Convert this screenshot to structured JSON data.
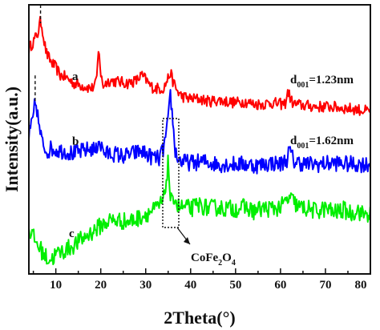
{
  "chart_data": {
    "type": "line",
    "xlabel": "2Theta(°)",
    "ylabel": "Intensity(a.u.)",
    "xlim": [
      4,
      80
    ],
    "x_ticks": [
      10,
      20,
      30,
      40,
      50,
      60,
      70,
      80
    ],
    "y_tick_labels": false,
    "series": [
      {
        "name": "a",
        "color": "#ff0000",
        "x": [
          4,
          5,
          6,
          6.6,
          7,
          7.5,
          8,
          9,
          10,
          11,
          12,
          14,
          16,
          18,
          19,
          19.6,
          20,
          20.5,
          21,
          22,
          24,
          26,
          28,
          29,
          30,
          31,
          32,
          34,
          35,
          35.5,
          36,
          37,
          38,
          40,
          42,
          44,
          46,
          48,
          50,
          52,
          54,
          56,
          58,
          60,
          61,
          61.7,
          62.3,
          63,
          65,
          68,
          71,
          74,
          77,
          80
        ],
        "y": [
          8.6,
          8.9,
          9.2,
          9.7,
          9.4,
          8.8,
          8.4,
          8.1,
          7.9,
          7.6,
          7.55,
          7.3,
          7.2,
          7.1,
          7.3,
          8.7,
          7.6,
          7.2,
          7.3,
          7.4,
          7.35,
          7.3,
          7.4,
          7.6,
          7.45,
          7.2,
          7.1,
          7.1,
          7.5,
          7.7,
          7.4,
          7.0,
          6.8,
          6.7,
          6.7,
          6.6,
          6.65,
          6.6,
          6.55,
          6.6,
          6.5,
          6.5,
          6.55,
          6.5,
          6.5,
          7.0,
          6.65,
          6.5,
          6.45,
          6.4,
          6.4,
          6.35,
          6.3,
          6.2
        ]
      },
      {
        "name": "b",
        "color": "#0000ff",
        "x": [
          4,
          4.5,
          5,
          5.4,
          5.8,
          6.3,
          7,
          8,
          9,
          10,
          12,
          14,
          16,
          18,
          19,
          19.5,
          20,
          21,
          23,
          25,
          27,
          29,
          31,
          33,
          34,
          35,
          35.5,
          36,
          36.5,
          37,
          38,
          40,
          43,
          46,
          49,
          52,
          55,
          58,
          60,
          61.5,
          62,
          63,
          66,
          69,
          72,
          75,
          78,
          80
        ],
        "y": [
          5.3,
          5.6,
          6.0,
          6.6,
          6.3,
          5.6,
          5.0,
          4.7,
          4.8,
          4.75,
          4.7,
          4.6,
          4.7,
          4.8,
          4.7,
          5.2,
          4.9,
          4.6,
          4.6,
          4.5,
          4.6,
          4.7,
          4.5,
          4.4,
          4.8,
          5.8,
          6.9,
          5.9,
          4.8,
          4.45,
          4.3,
          4.25,
          4.3,
          4.2,
          4.2,
          4.2,
          4.15,
          4.25,
          4.2,
          4.4,
          4.75,
          4.3,
          4.2,
          4.2,
          4.25,
          4.2,
          4.2,
          4.2
        ]
      },
      {
        "name": "c",
        "color": "#00ee00",
        "x": [
          4,
          5,
          6,
          7,
          8,
          9,
          10,
          12,
          14,
          16,
          18,
          20,
          22,
          24,
          26,
          28,
          30,
          32,
          33,
          34,
          34.6,
          35,
          35.5,
          36,
          36.5,
          37,
          38,
          40,
          42,
          44,
          46,
          48,
          50,
          52,
          54,
          56,
          58,
          60,
          62,
          63,
          64,
          66,
          68,
          70,
          72,
          74,
          76,
          77,
          78,
          80
        ],
        "y": [
          1.75,
          1.4,
          1.1,
          0.85,
          0.6,
          0.55,
          0.75,
          0.9,
          1.1,
          1.35,
          1.6,
          1.85,
          2.05,
          2.05,
          2.0,
          2.1,
          2.3,
          2.45,
          2.6,
          2.8,
          3.6,
          4.3,
          2.9,
          2.6,
          3.1,
          2.6,
          2.55,
          2.5,
          2.65,
          2.5,
          2.55,
          2.5,
          2.5,
          2.55,
          2.4,
          2.5,
          2.5,
          2.55,
          2.9,
          2.75,
          2.55,
          2.5,
          2.4,
          2.5,
          2.35,
          2.45,
          2.3,
          2.5,
          2.3,
          2.3
        ]
      }
    ],
    "annotations": {
      "labels": [
        "a",
        "b",
        "c"
      ],
      "d_a_main": "d",
      "d_a_sub": "001",
      "d_a_value": "=1.23nm",
      "d_b_main": "d",
      "d_b_sub": "001",
      "d_b_value": "=1.62nm",
      "phase_main": "CoFe",
      "phase_sub1": "2",
      "phase_mid": "O",
      "phase_sub2": "4"
    }
  }
}
